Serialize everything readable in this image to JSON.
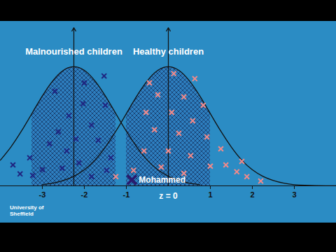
{
  "chart_data": {
    "type": "area",
    "xlim": [
      -4,
      4
    ],
    "xticks": [
      -3,
      -2,
      -1,
      1,
      2,
      3
    ],
    "ylim": [
      0,
      0.53
    ],
    "tick_labels": "x",
    "vertical_axes": [
      -2.25,
      0
    ],
    "series": [
      {
        "name": "Malnourished children",
        "color": "#1f2580",
        "marker": "x",
        "x": [
          -4,
          -3.75,
          -3.5,
          -3.25,
          -3,
          -2.75,
          -2.5,
          -2.25,
          -2,
          -1.75,
          -1.5,
          -1.25,
          -1,
          -0.75,
          -0.5,
          -0.25,
          0,
          0.25,
          0.5,
          0.75
        ],
        "values": [
          0.086,
          0.13,
          0.183,
          0.242,
          0.301,
          0.352,
          0.387,
          0.399,
          0.387,
          0.352,
          0.301,
          0.242,
          0.183,
          0.13,
          0.086,
          0.054,
          0.032,
          0.018,
          0.009,
          0.004
        ],
        "shaded": [
          -3.25,
          -1.25
        ],
        "points": {
          "x": [
            -2.0,
            -1.53,
            -2.7,
            -2.03,
            -1.5,
            -2.37,
            -1.83,
            -2.62,
            -1.67,
            -2.83,
            -2.2,
            -2.42,
            -3.3,
            -3.7,
            -3.53,
            -3.23,
            -3.0,
            -2.13,
            -1.37,
            -1.47,
            -1.83,
            -2.53
          ],
          "y": [
            0.345,
            0.368,
            0.317,
            0.275,
            0.27,
            0.235,
            0.204,
            0.181,
            0.153,
            0.141,
            0.157,
            0.117,
            0.094,
            0.07,
            0.04,
            0.035,
            0.054,
            0.077,
            0.094,
            0.052,
            0.031,
            0.059
          ]
        }
      },
      {
        "name": "Healthy children",
        "color": "#f08a8a",
        "marker": "x",
        "x": [
          -3,
          -2.75,
          -2.5,
          -2.25,
          -2,
          -1.75,
          -1.5,
          -1.25,
          -1,
          -0.75,
          -0.5,
          -0.25,
          0,
          0.25,
          0.5,
          0.75,
          1,
          1.25,
          1.5,
          1.75,
          2,
          2.25,
          2.5,
          2.75,
          3,
          3.25,
          3.5,
          3.75,
          4
        ],
        "values": [
          0.004,
          0.009,
          0.018,
          0.032,
          0.054,
          0.086,
          0.13,
          0.183,
          0.242,
          0.301,
          0.352,
          0.387,
          0.399,
          0.387,
          0.352,
          0.301,
          0.242,
          0.183,
          0.13,
          0.086,
          0.054,
          0.032,
          0.018,
          0.009,
          0.004,
          0.002,
          0.001,
          0.0004,
          0.0001
        ],
        "shaded": [
          -1,
          1
        ],
        "points": {
          "x": [
            -0.45,
            0.13,
            0.63,
            -0.25,
            0.37,
            0.83,
            -0.53,
            0.08,
            0.58,
            -0.33,
            0.25,
            0.92,
            -0.58,
            0,
            0.53,
            -0.17,
            0.37,
            1.0,
            1.25,
            1.37,
            1.63,
            1.87,
            2.2,
            -0.83,
            -1.25,
            1.75
          ],
          "y": [
            0.345,
            0.376,
            0.359,
            0.305,
            0.298,
            0.27,
            0.246,
            0.246,
            0.218,
            0.188,
            0.176,
            0.164,
            0.117,
            0.117,
            0.101,
            0.063,
            0.042,
            0.066,
            0.124,
            0.07,
            0.047,
            0.031,
            0.016,
            0.052,
            0.031,
            0.082
          ]
        }
      }
    ],
    "highlight": {
      "label": "Mohammed",
      "x": -0.87,
      "y": 0.02,
      "color": "#2a1a6e",
      "marker": "x"
    },
    "annotations": [
      {
        "text": "z = 0",
        "x": 0
      }
    ],
    "logo": "University of Sheffield"
  }
}
